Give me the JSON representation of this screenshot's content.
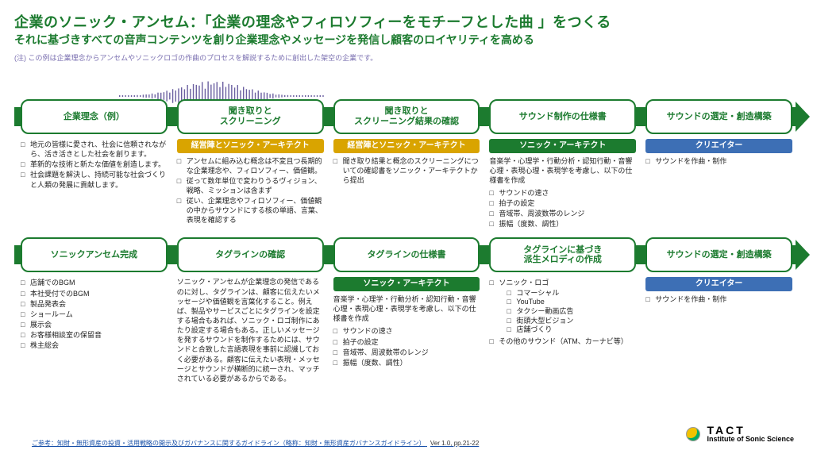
{
  "title": {
    "main": "企業のソニック・アンセム：「企業の理念やフィロソフィーをモチーフとした曲 」をつくる",
    "sub": "それに基づきすべての音声コンテンツを創り企業理念やメッセージを発信し顧客のロイヤリティを高める",
    "main_fontsize": 18,
    "sub_fontsize": 14,
    "color": "#1c7b2f"
  },
  "note": {
    "text": "(注) この例は企業理念からアンセムやソニックロゴの作曲のプロセスを解説するために創出した架空の企業です。",
    "fontsize": 9,
    "color": "#7a6fb0"
  },
  "palette": {
    "green": "#1c7b2f",
    "green_dark": "#0f5a20",
    "role_yellow": "#d9a400",
    "role_green": "#1c7b2f",
    "role_blue": "#3d6fb5",
    "link": "#1850a8",
    "text": "#222222",
    "white": "#ffffff"
  },
  "step_box_fontsize": 11,
  "role_fontsize": 10,
  "body_fontsize": 9,
  "row1": {
    "steps": [
      {
        "label": "企業理念（例）"
      },
      {
        "label": "聞き取りと\nスクリーニング"
      },
      {
        "label": "聞き取りと\nスクリーニング結果の確認"
      },
      {
        "label": "サウンド制作の仕様書"
      },
      {
        "label": "サウンドの選定・創造構築"
      }
    ],
    "cols": [
      {
        "bullets": [
          "地元の皆様に愛され、社会に信頼されながら、活き活きとした社会を創ります。",
          "革新的な技術と新たな価値を創造します。",
          "社会課題を解決し、持続可能な社会づくりと人類の発展に貢献します。"
        ]
      },
      {
        "role": {
          "text": "経営陣とソニック・アーキテクト",
          "bg": "#d9a400"
        },
        "bullets": [
          "アンセムに組み込む概念は不変且つ長期的な企業理念や、フィロソフィー、価値観。",
          "従って数年単位で変わりうるヴィジョン、戦略、ミッションは含まず",
          "従い、企業理念やフィロソフィー、価値観の中からサウンドにする核の単語、言葉、表現を確認する"
        ]
      },
      {
        "role": {
          "text": "経営陣とソニック・アーキテクト",
          "bg": "#d9a400"
        },
        "bullets": [
          "聞き取り結果と概念のスクリーニングについての確認書をソニック・アーキテクトから提出"
        ]
      },
      {
        "role": {
          "text": "ソニック・アーキテクト",
          "bg": "#1c7b2f"
        },
        "lead": "音楽学・心理学・行動分析・認知行動・音響心理・表現心理・表現学を考慮し、以下の仕様書を作成",
        "bullets": [
          "サウンドの速さ",
          "拍子の設定",
          "音域帯、周波数帯のレンジ",
          "振幅（度数、調性）"
        ]
      },
      {
        "role": {
          "text": "クリエイター",
          "bg": "#3d6fb5"
        },
        "bullets": [
          "サウンドを作曲・制作"
        ]
      }
    ]
  },
  "row2": {
    "steps": [
      {
        "label": "ソニックアンセム完成"
      },
      {
        "label": "タグラインの確認"
      },
      {
        "label": "タグラインの仕様書"
      },
      {
        "label": "タグラインに基づき\n派生メロディの作成"
      },
      {
        "label": "サウンドの選定・創造構築"
      }
    ],
    "cols": [
      {
        "bullets": [
          "店舗でのBGM",
          "本社受付でのBGM",
          "製品発表会",
          "ショールーム",
          "展示会",
          "お客様相談室の保留音",
          "株主総会"
        ]
      },
      {
        "para": "ソニック・アンセムが企業理念の発信であるのに対し、タグラインは、顧客に伝えたいメッセージや価値観を言葉化すること。例えば、製品やサービスごとにタグラインを設定する場合もあれば、ソニック・ロゴ制作にあたり設定する場合もある。正しいメッセージを発するサウンドを制作するためには、サウンドと合致した言語表現を事前に認識しておく必要がある。顧客に伝えたい表現・メッセージとサウンドが横断的に統一され、マッチされている必要があるからである。"
      },
      {
        "role": {
          "text": "ソニック・アーキテクト",
          "bg": "#1c7b2f"
        },
        "lead": "音楽学・心理学・行動分析・認知行動・音響心理・表現心理・表現学を考慮し、以下の仕様書を作成",
        "bullets": [
          "サウンドの速さ",
          "拍子の設定",
          "音域帯、周波数帯のレンジ",
          "振幅（度数、調性）"
        ]
      },
      {
        "groups": [
          {
            "head": "ソニック・ロゴ",
            "items": [
              "コマーシャル",
              "YouTube",
              "タクシー動画広告",
              "街頭大型ビジョン",
              "店舗づくり"
            ]
          },
          {
            "head": "その他のサウンド（ATM、カーナビ等）",
            "items": []
          }
        ]
      },
      {
        "role": {
          "text": "クリエイター",
          "bg": "#3d6fb5"
        },
        "bullets": [
          "サウンドを作曲・制作"
        ]
      }
    ]
  },
  "reference": {
    "link": "ご参考：知財・無形資産の投資・活用戦略の開示及びガバナンスに関するガイドライン（略称：知財・無形資産ガバナンスガイドライン）",
    "ver": "Ver 1.0, pp.21-22",
    "fontsize": 8
  },
  "logo": {
    "line1": "TACT",
    "line2": "Institute of Sonic Science"
  },
  "waveform": {
    "color": "#6a5fa0",
    "bars": 70,
    "max_h": 38
  }
}
